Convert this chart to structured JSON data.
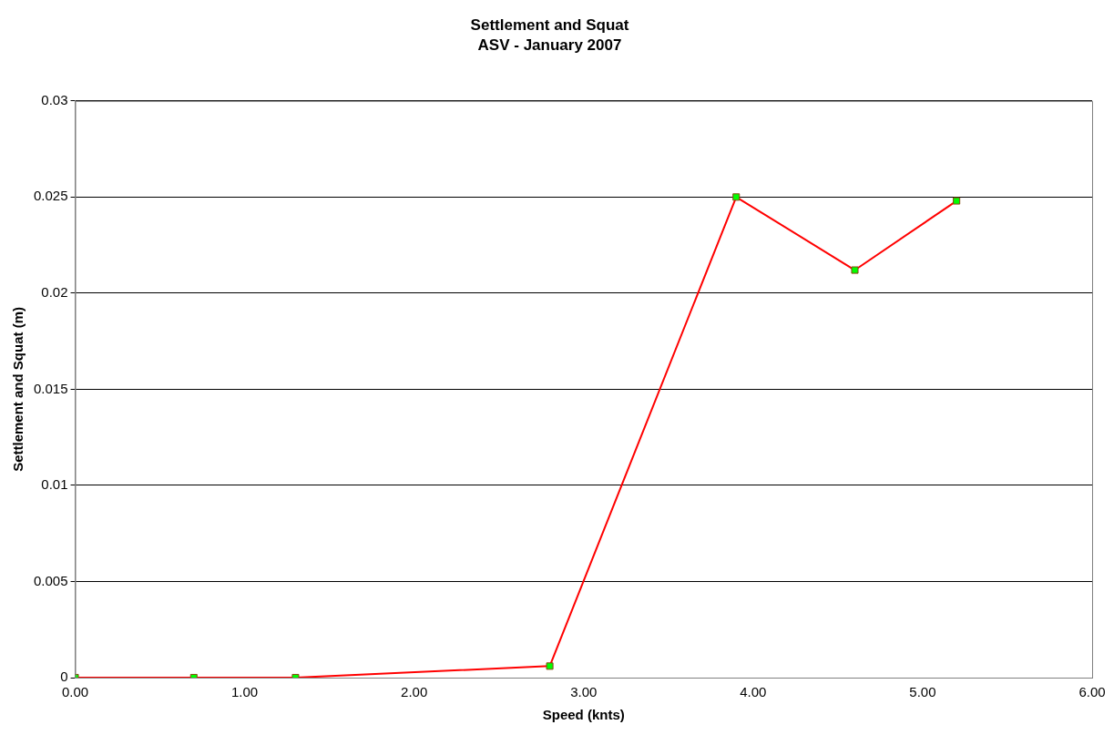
{
  "chart_data": {
    "type": "line",
    "title": "Settlement and Squat",
    "subtitle": "ASV - January 2007",
    "xlabel": "Speed (knts)",
    "ylabel": "Settlement and Squat (m)",
    "x": [
      0,
      0.7,
      1.3,
      2.8,
      3.9,
      4.6,
      5.2
    ],
    "series": [
      {
        "color": "#ff0000",
        "colors": [
          "#00ff00",
          "#00ff00",
          "#00ff00",
          "#00ff00",
          "#00ff00",
          "#00ff00",
          "#00ff00"
        ],
        "values": [
          0,
          0,
          0,
          0.0006,
          0.025,
          0.0212,
          0.0248
        ]
      }
    ],
    "xlim": [
      0,
      6
    ],
    "xticks": [
      {
        "value": 0,
        "label": "0.00"
      },
      {
        "value": 1,
        "label": "1.00"
      },
      {
        "value": 2,
        "label": "2.00"
      },
      {
        "value": 3,
        "label": "3.00"
      },
      {
        "value": 4,
        "label": "4.00"
      },
      {
        "value": 5,
        "label": "5.00"
      },
      {
        "value": 6,
        "label": "6.00"
      }
    ],
    "ylim": [
      0,
      0.03
    ],
    "yticks": [
      0,
      0.005,
      0.01,
      0.015,
      0.02,
      0.025,
      0.03
    ],
    "grid": "y",
    "legend": false,
    "marker": "square",
    "line_style": "solid"
  }
}
